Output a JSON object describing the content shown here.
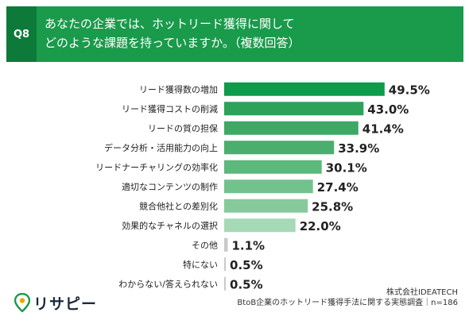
{
  "question": {
    "label": "Q8",
    "line1": "あなたの企業では、ホットリード獲得に関して",
    "line2": "どのような課題を持っていますか。（複数回答）"
  },
  "chart_data": {
    "type": "bar",
    "orientation": "horizontal",
    "categories": [
      "リード獲得数の増加",
      "リード獲得コストの削減",
      "リードの質の担保",
      "データ分析・活用能力の向上",
      "リードナーチャリングの効率化",
      "適切なコンテンツの制作",
      "競合他社との差別化",
      "効果的なチャネルの選択",
      "その他",
      "特にない",
      "わからない/答えられない"
    ],
    "values": [
      49.5,
      43.0,
      41.4,
      33.9,
      30.1,
      27.4,
      25.8,
      22.0,
      1.1,
      0.5,
      0.5
    ],
    "value_labels": [
      "49.5%",
      "43.0%",
      "41.4%",
      "33.9%",
      "30.1%",
      "27.4%",
      "25.8%",
      "22.0%",
      "1.1%",
      "0.5%",
      "0.5%"
    ],
    "colors": [
      "#0e9b4a",
      "#2da25a",
      "#3ea865",
      "#4aae6e",
      "#5db87c",
      "#72c28d",
      "#86ca9c",
      "#a6d9b6",
      "#c9c9c9",
      "#c9c9c9",
      "#c9c9c9"
    ],
    "xlim": [
      0,
      52
    ],
    "grid": false,
    "legend": false
  },
  "footer": {
    "company": "株式会社IDEATECH",
    "survey": "BtoB企業のホットリード獲得手法に関する実態調査｜n=186"
  },
  "logo": {
    "text": "リサピー",
    "accent_color": "#1a9a4b"
  }
}
